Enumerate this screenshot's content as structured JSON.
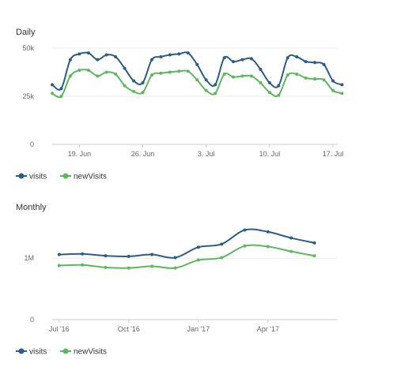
{
  "colors": {
    "visits": "#2c5c8a",
    "newVisits": "#5cb85c"
  },
  "chart_data": [
    {
      "type": "line",
      "title": "Daily",
      "y_ticks": [
        "0",
        "25k",
        "50k"
      ],
      "ylim": [
        0,
        50000
      ],
      "x_tick_labels": [
        {
          "label": "19. Jun",
          "day": 3
        },
        {
          "label": "26. Jun",
          "day": 10
        },
        {
          "label": "3. Jul",
          "day": 17
        },
        {
          "label": "10. Jul",
          "day": 24
        },
        {
          "label": "17. Jul",
          "day": 31
        }
      ],
      "x_range_days": [
        0,
        31
      ],
      "grid": true,
      "legend_position": "bottom-left",
      "series": [
        {
          "name": "visits",
          "values": [
            31000,
            29000,
            44000,
            47000,
            47500,
            44000,
            46500,
            45500,
            39500,
            33000,
            32000,
            44000,
            45500,
            46500,
            47000,
            47500,
            41500,
            33500,
            31000,
            45000,
            43000,
            44000,
            44500,
            39000,
            32000,
            30500,
            45000,
            45500,
            43000,
            42500,
            41500,
            33000,
            31000
          ]
        },
        {
          "name": "newVisits",
          "values": [
            26500,
            25000,
            35500,
            38500,
            38500,
            35500,
            37500,
            36500,
            30500,
            27500,
            27000,
            36000,
            37000,
            37500,
            38000,
            38000,
            33500,
            28000,
            26500,
            36500,
            35000,
            35500,
            35500,
            32000,
            27000,
            25500,
            36000,
            36500,
            34500,
            34000,
            33500,
            28000,
            26500
          ]
        }
      ],
      "legend": [
        "visits",
        "newVisits"
      ]
    },
    {
      "type": "line",
      "title": "Monthly",
      "y_ticks": [
        "0",
        "1M"
      ],
      "ylim": [
        0,
        1800000
      ],
      "x_tick_labels": [
        {
          "label": "Jul '16",
          "month": 0
        },
        {
          "label": "Oct '16",
          "month": 3
        },
        {
          "label": "Jan '17",
          "month": 6
        },
        {
          "label": "Apr '17",
          "month": 9
        }
      ],
      "x_range_months": [
        -0.3,
        11.8
      ],
      "grid": true,
      "legend_position": "bottom-left",
      "series": [
        {
          "name": "visits",
          "values": [
            1060000,
            1070000,
            1040000,
            1030000,
            1060000,
            1010000,
            1180000,
            1230000,
            1460000,
            1430000,
            1330000,
            1250000
          ]
        },
        {
          "name": "newVisits",
          "values": [
            880000,
            890000,
            850000,
            840000,
            870000,
            840000,
            970000,
            1010000,
            1200000,
            1190000,
            1110000,
            1040000
          ]
        }
      ],
      "legend": [
        "visits",
        "newVisits"
      ]
    }
  ]
}
